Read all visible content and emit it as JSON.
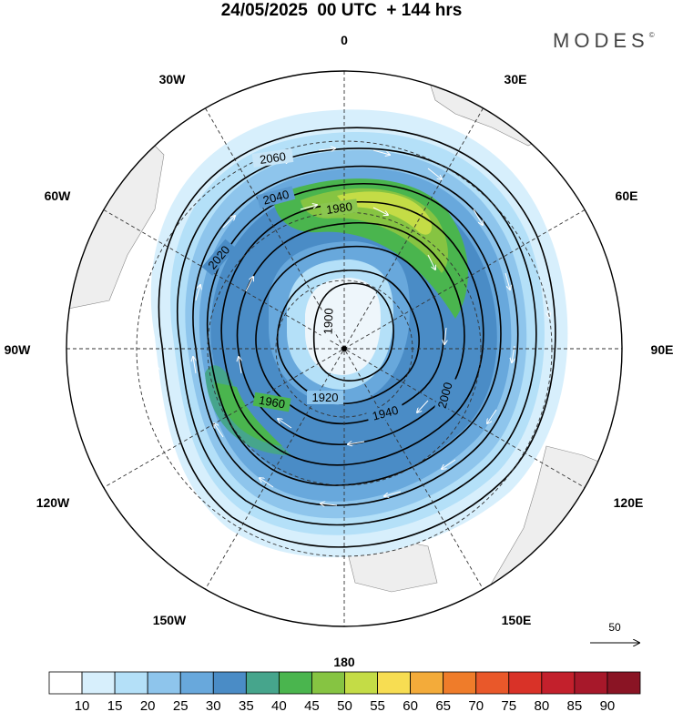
{
  "title": "24/05/2025  00 UTC  + 144 hrs",
  "brand": {
    "name": "MODES",
    "mark": "©"
  },
  "longitude_labels": [
    "0",
    "30E",
    "60E",
    "90E",
    "120E",
    "150E",
    "180",
    "150W",
    "120W",
    "90W",
    "60W",
    "30W"
  ],
  "contour_labels": [
    "2060",
    "2040",
    "2020",
    "2000",
    "1980",
    "1960",
    "1940",
    "1920",
    "1900"
  ],
  "vector_reference": {
    "value": "50",
    "icon": "arrow-right-icon"
  },
  "colorbar": {
    "ticks": [
      "10",
      "15",
      "20",
      "25",
      "30",
      "35",
      "40",
      "45",
      "50",
      "55",
      "60",
      "65",
      "70",
      "75",
      "80",
      "85",
      "90"
    ],
    "colors": [
      "#ffffff",
      "#d7effc",
      "#b4e0f8",
      "#8ec5ec",
      "#68a8dc",
      "#4a8cc6",
      "#46a58c",
      "#4ab54e",
      "#86c442",
      "#c4dc46",
      "#f7dd52",
      "#f3ab3a",
      "#ef7c2a",
      "#e9582a",
      "#d93228",
      "#c3202c",
      "#a7182a",
      "#8a1424"
    ]
  }
}
